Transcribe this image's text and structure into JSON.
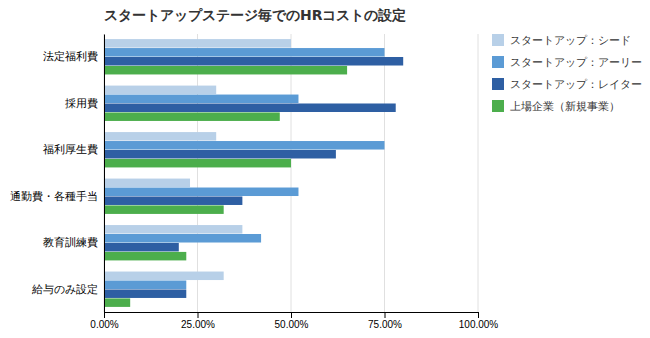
{
  "chart_data": {
    "type": "bar",
    "orientation": "horizontal",
    "title": "スタートアップステージ毎でのHRコストの設定",
    "categories": [
      "法定福利費",
      "採用費",
      "福利厚生費",
      "通勤費・各種手当",
      "教育訓練費",
      "給与のみ設定"
    ],
    "series": [
      {
        "name": "スタートアップ：シード",
        "color": "#b8d0e8",
        "values": [
          0.5,
          0.3,
          0.3,
          0.23,
          0.37,
          0.32
        ]
      },
      {
        "name": "スタートアップ：アーリー",
        "color": "#5b9bd5",
        "values": [
          0.75,
          0.52,
          0.75,
          0.52,
          0.42,
          0.22
        ]
      },
      {
        "name": "スタートアップ：レイター",
        "color": "#2e5fa3",
        "values": [
          0.8,
          0.78,
          0.62,
          0.37,
          0.2,
          0.22
        ]
      },
      {
        "name": "上場企業（新規事業）",
        "color": "#4cae4c",
        "values": [
          0.65,
          0.47,
          0.5,
          0.32,
          0.22,
          0.07
        ]
      }
    ],
    "xlim": [
      0,
      1.0
    ],
    "xticks": [
      {
        "value": 0.0,
        "label": "0.00%"
      },
      {
        "value": 0.25,
        "label": "25.00%"
      },
      {
        "value": 0.5,
        "label": "50.00%"
      },
      {
        "value": 0.75,
        "label": "75.00%"
      },
      {
        "value": 1.0,
        "label": "100.00%"
      }
    ],
    "grid": true,
    "legend": "right"
  }
}
